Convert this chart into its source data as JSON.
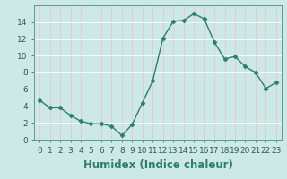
{
  "x": [
    0,
    1,
    2,
    3,
    4,
    5,
    6,
    7,
    8,
    9,
    10,
    11,
    12,
    13,
    14,
    15,
    16,
    17,
    18,
    19,
    20,
    21,
    22,
    23
  ],
  "y": [
    4.7,
    3.8,
    3.8,
    2.9,
    2.2,
    1.9,
    1.9,
    1.6,
    0.5,
    1.8,
    4.4,
    7.0,
    12.1,
    14.1,
    14.2,
    15.0,
    14.4,
    11.6,
    9.6,
    9.9,
    8.7,
    8.0,
    6.1,
    6.8
  ],
  "line_color": "#2d7d6e",
  "marker": "D",
  "marker_size": 2.5,
  "linewidth": 1.0,
  "xlabel": "Humidex (Indice chaleur)",
  "xlim": [
    -0.5,
    23.5
  ],
  "ylim": [
    0,
    16
  ],
  "yticks": [
    0,
    2,
    4,
    6,
    8,
    10,
    12,
    14
  ],
  "xtick_labels": [
    "0",
    "1",
    "2",
    "3",
    "4",
    "5",
    "6",
    "7",
    "8",
    "9",
    "10",
    "11",
    "12",
    "13",
    "14",
    "15",
    "16",
    "17",
    "18",
    "19",
    "20",
    "21",
    "22",
    "23"
  ],
  "bg_color": "#cce9e8",
  "grid_color_major_x": "#e8c8c8",
  "grid_color_major_y": "#ffffff",
  "tick_fontsize": 6.5,
  "xlabel_fontsize": 8.5
}
